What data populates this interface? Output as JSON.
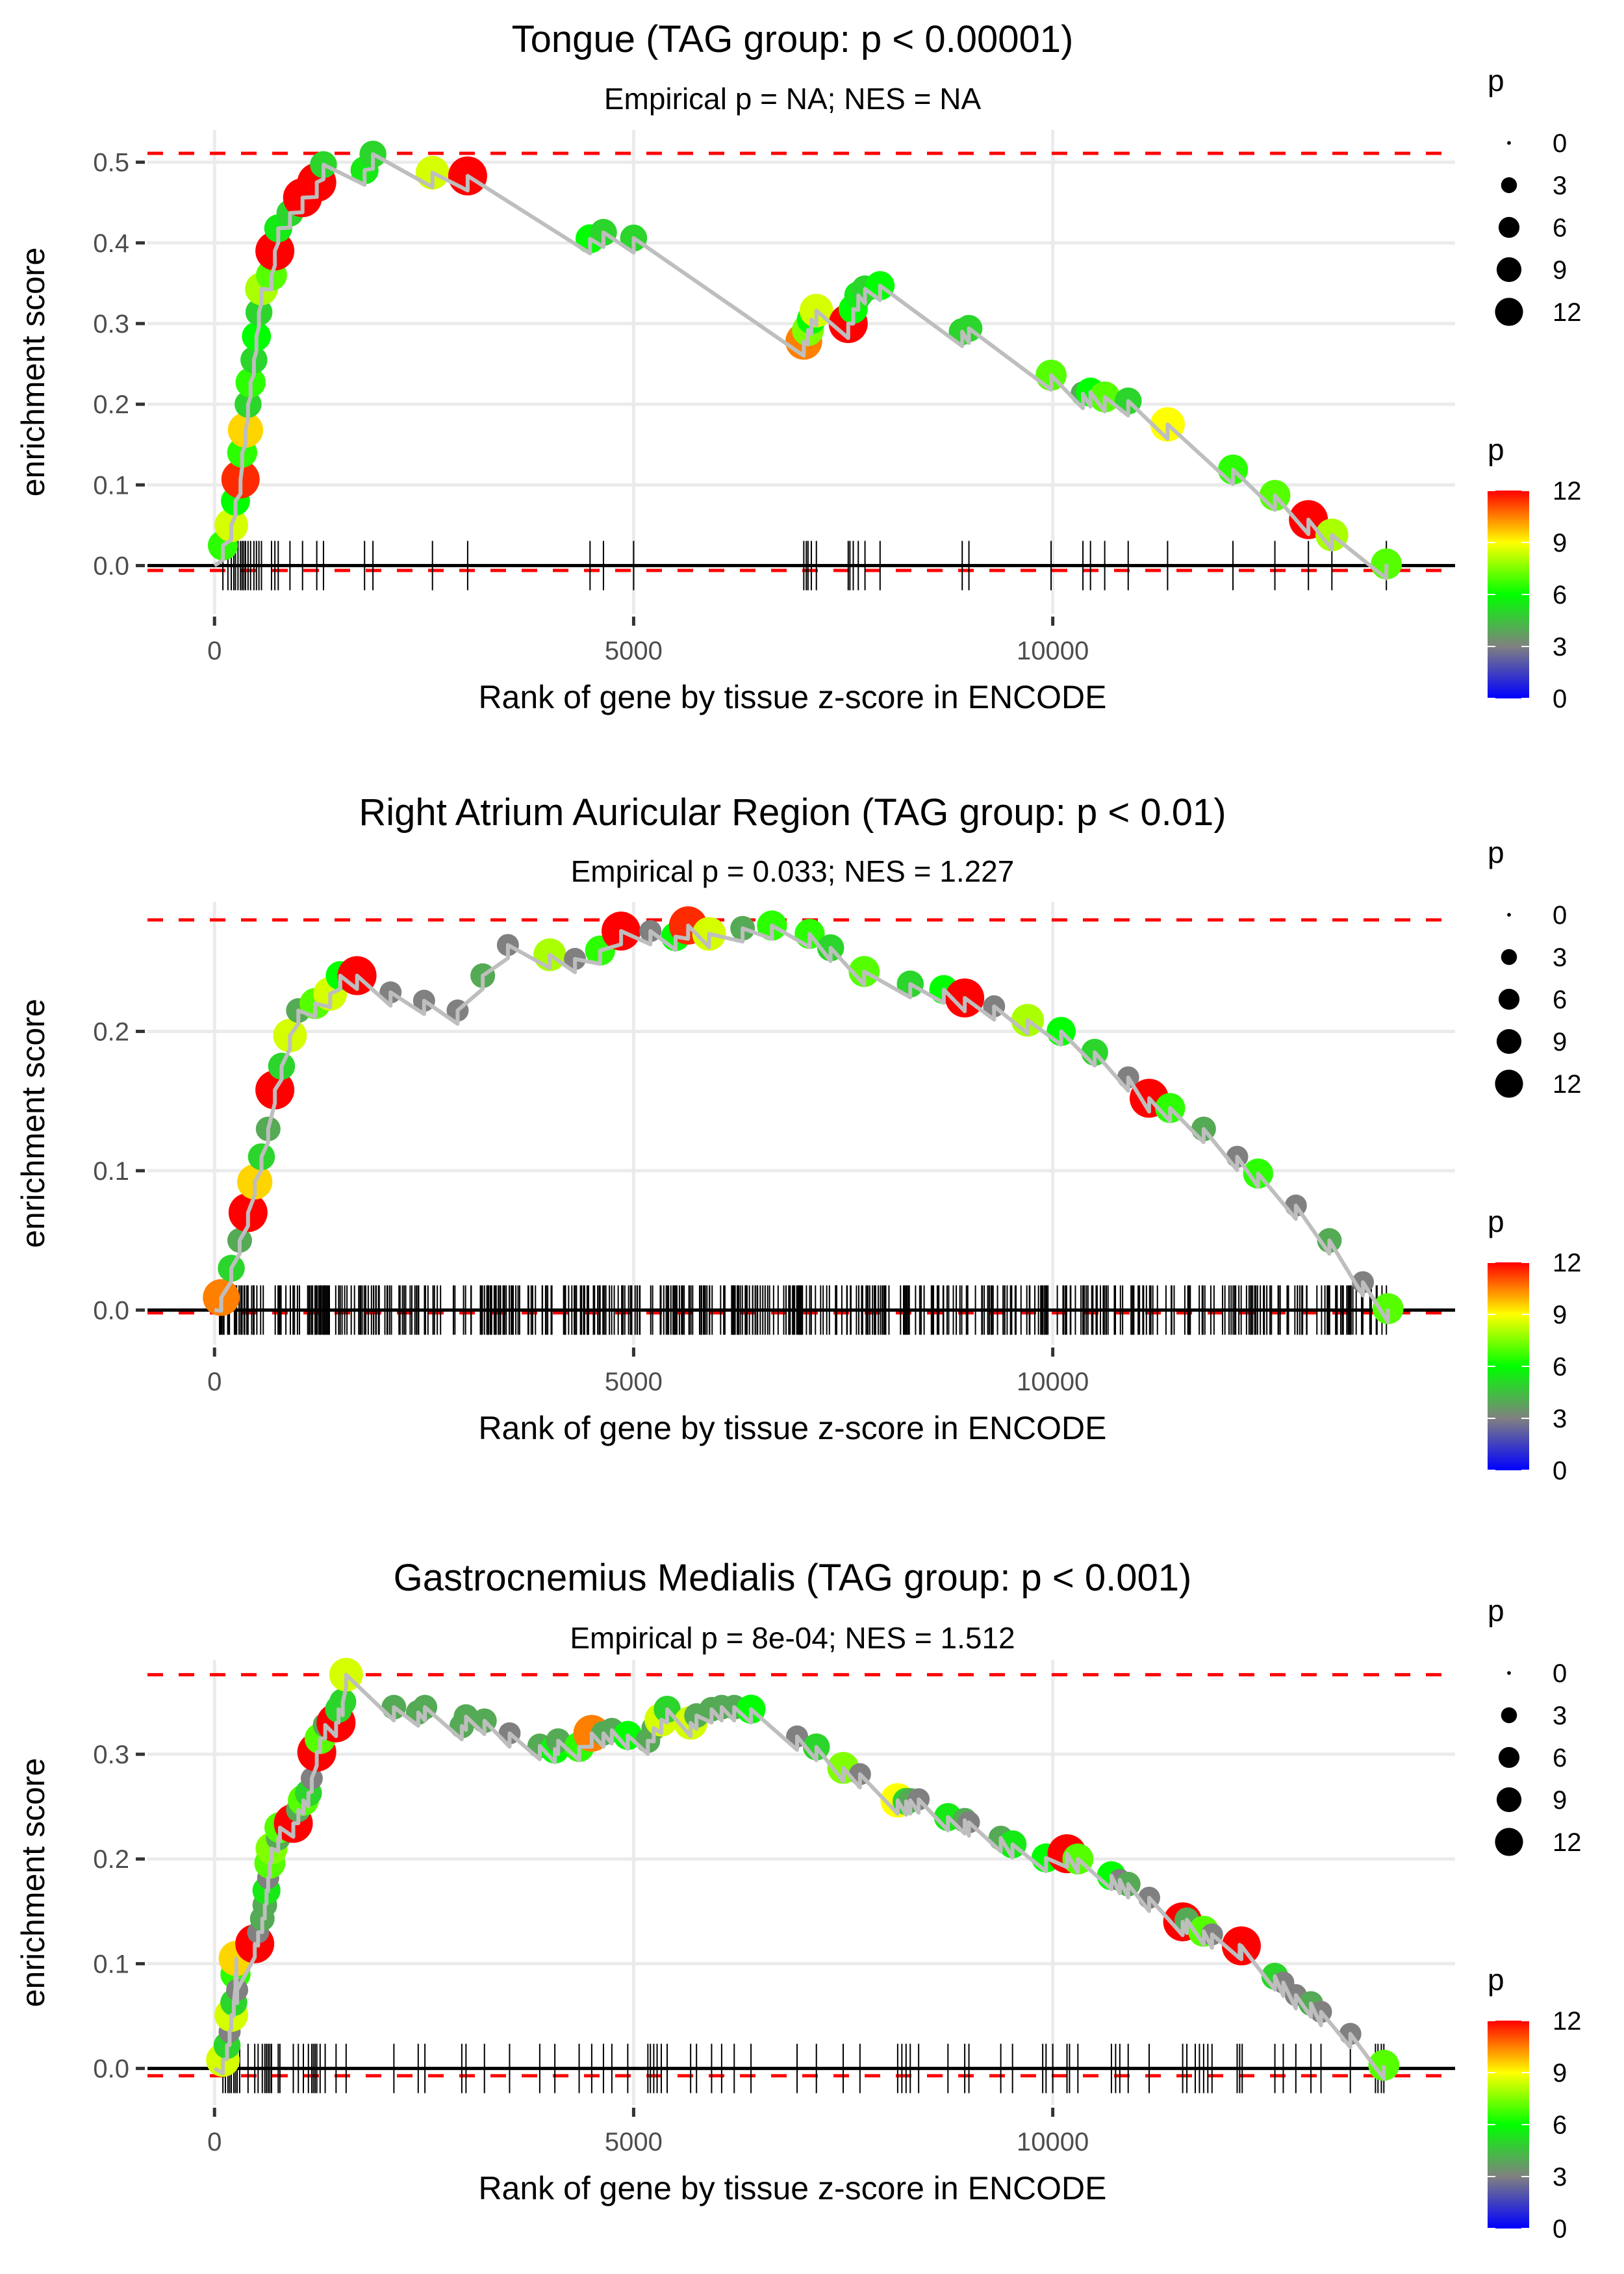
{
  "chart_data": [
    {
      "type": "line",
      "title": "Tongue (TAG group: p < 0.00001)",
      "subtitle": "Empirical p = NA; NES = NA",
      "xlabel": "Rank of gene by tissue z-score in ENCODE",
      "ylabel": "enrichment score",
      "xlim": [
        -800,
        14800
      ],
      "ylim": [
        -0.06,
        0.54
      ],
      "x_ticks": [
        0,
        5000,
        10000
      ],
      "x_tick_labels": [
        "0",
        "5000",
        "10000"
      ],
      "y_ticks": [
        0.0,
        0.1,
        0.2,
        0.3,
        0.4,
        0.5
      ],
      "y_tick_labels": [
        "0.0",
        "0.1",
        "0.2",
        "0.3",
        "0.4",
        "0.5"
      ],
      "max_es_line": 0.511,
      "min_es_line": -0.006,
      "grid": true,
      "points": [
        [
          100,
          0.025,
          6.5
        ],
        [
          200,
          0.05,
          8.5
        ],
        [
          250,
          0.08,
          6
        ],
        [
          310,
          0.107,
          11.5
        ],
        [
          330,
          0.14,
          6.5
        ],
        [
          370,
          0.168,
          9.5
        ],
        [
          400,
          0.2,
          5
        ],
        [
          430,
          0.227,
          6.5
        ],
        [
          470,
          0.255,
          5
        ],
        [
          500,
          0.284,
          6
        ],
        [
          530,
          0.314,
          5
        ],
        [
          560,
          0.343,
          8
        ],
        [
          680,
          0.36,
          7
        ],
        [
          720,
          0.39,
          12
        ],
        [
          760,
          0.418,
          5.5
        ],
        [
          900,
          0.437,
          5
        ],
        [
          1050,
          0.456,
          12
        ],
        [
          1220,
          0.475,
          12
        ],
        [
          1300,
          0.497,
          5
        ],
        [
          1790,
          0.49,
          5.5
        ],
        [
          1890,
          0.51,
          5
        ],
        [
          2600,
          0.487,
          8.5
        ],
        [
          3020,
          0.483,
          12
        ],
        [
          4480,
          0.405,
          6
        ],
        [
          4640,
          0.413,
          5
        ],
        [
          5000,
          0.406,
          5
        ],
        [
          7030,
          0.278,
          10.5
        ],
        [
          7080,
          0.292,
          7.5
        ],
        [
          7120,
          0.305,
          6
        ],
        [
          7180,
          0.316,
          8.5
        ],
        [
          7560,
          0.3,
          12
        ],
        [
          7620,
          0.318,
          6
        ],
        [
          7680,
          0.335,
          5.5
        ],
        [
          7760,
          0.343,
          5
        ],
        [
          7940,
          0.347,
          6
        ],
        [
          8920,
          0.29,
          5
        ],
        [
          9000,
          0.294,
          5
        ],
        [
          9980,
          0.236,
          7
        ],
        [
          10360,
          0.213,
          4
        ],
        [
          10450,
          0.215,
          6
        ],
        [
          10620,
          0.209,
          7
        ],
        [
          10900,
          0.204,
          5
        ],
        [
          11370,
          0.175,
          9
        ],
        [
          12150,
          0.119,
          6.5
        ],
        [
          12650,
          0.087,
          7
        ],
        [
          13050,
          0.057,
          12
        ],
        [
          13330,
          0.038,
          8
        ],
        [
          13980,
          0.002,
          7
        ]
      ],
      "rug": [
        100,
        160,
        200,
        230,
        250,
        280,
        310,
        330,
        350,
        370,
        400,
        430,
        470,
        500,
        530,
        560,
        680,
        720,
        760,
        900,
        1050,
        1220,
        1300,
        1790,
        1890,
        2600,
        3020,
        4480,
        4640,
        5000,
        7030,
        7060,
        7080,
        7120,
        7180,
        7560,
        7580,
        7620,
        7680,
        7760,
        7940,
        8920,
        9000,
        9980,
        10360,
        10450,
        10620,
        10900,
        11370,
        12150,
        12650,
        13050,
        13330,
        13980
      ]
    },
    {
      "type": "line",
      "title": "Right Atrium Auricular Region (TAG group: p < 0.01)",
      "subtitle": "Empirical p = 0.033; NES = 1.227",
      "xlabel": "Rank of gene by tissue z-score in ENCODE",
      "ylabel": "enrichment score",
      "xlim": [
        -800,
        14800
      ],
      "ylim": [
        -0.025,
        0.293
      ],
      "x_ticks": [
        0,
        5000,
        10000
      ],
      "x_tick_labels": [
        "0",
        "5000",
        "10000"
      ],
      "y_ticks": [
        0.0,
        0.1,
        0.2
      ],
      "y_tick_labels": [
        "0.0",
        "0.1",
        "0.2"
      ],
      "max_es_line": 0.28,
      "min_es_line": -0.002,
      "grid": true,
      "points": [
        [
          80,
          0.009,
          10.5
        ],
        [
          200,
          0.03,
          5
        ],
        [
          300,
          0.05,
          4
        ],
        [
          400,
          0.07,
          12
        ],
        [
          480,
          0.092,
          9.5
        ],
        [
          560,
          0.11,
          5
        ],
        [
          640,
          0.13,
          4
        ],
        [
          720,
          0.158,
          12
        ],
        [
          800,
          0.175,
          5
        ],
        [
          900,
          0.197,
          8.5
        ],
        [
          1000,
          0.215,
          4
        ],
        [
          1200,
          0.22,
          7
        ],
        [
          1380,
          0.227,
          8.5
        ],
        [
          1500,
          0.24,
          6
        ],
        [
          1700,
          0.24,
          12
        ],
        [
          2100,
          0.228,
          3
        ],
        [
          2500,
          0.222,
          3
        ],
        [
          2900,
          0.215,
          3
        ],
        [
          3200,
          0.24,
          4
        ],
        [
          3500,
          0.262,
          3
        ],
        [
          4000,
          0.255,
          8
        ],
        [
          4300,
          0.252,
          3
        ],
        [
          4600,
          0.258,
          6.5
        ],
        [
          4850,
          0.272,
          12
        ],
        [
          5200,
          0.272,
          3
        ],
        [
          5500,
          0.268,
          6
        ],
        [
          5650,
          0.276,
          11.5
        ],
        [
          5900,
          0.27,
          8.5
        ],
        [
          6300,
          0.274,
          4
        ],
        [
          6650,
          0.276,
          6.5
        ],
        [
          7100,
          0.27,
          6.5
        ],
        [
          7350,
          0.26,
          5
        ],
        [
          7750,
          0.243,
          7
        ],
        [
          8300,
          0.234,
          5
        ],
        [
          8700,
          0.23,
          6
        ],
        [
          8950,
          0.224,
          12
        ],
        [
          9300,
          0.218,
          3
        ],
        [
          9700,
          0.208,
          8
        ],
        [
          10100,
          0.2,
          6
        ],
        [
          10500,
          0.185,
          5
        ],
        [
          10900,
          0.167,
          3
        ],
        [
          11150,
          0.152,
          12
        ],
        [
          11400,
          0.145,
          6.5
        ],
        [
          11800,
          0.13,
          4
        ],
        [
          12200,
          0.11,
          3
        ],
        [
          12450,
          0.098,
          6.5
        ],
        [
          12900,
          0.075,
          3
        ],
        [
          13300,
          0.05,
          4
        ],
        [
          13700,
          0.02,
          3
        ],
        [
          14000,
          0.001,
          7
        ]
      ],
      "rug_range": [
        60,
        14000
      ],
      "rug_count": 520
    },
    {
      "type": "line",
      "title": "Gastrocnemius Medialis (TAG group: p < 0.001)",
      "subtitle": "Empirical p = 8e-04; NES = 1.512",
      "xlabel": "Rank of gene by tissue z-score in ENCODE",
      "ylabel": "enrichment score",
      "xlim": [
        -800,
        14800
      ],
      "ylim": [
        -0.035,
        0.39
      ],
      "x_ticks": [
        0,
        5000,
        10000
      ],
      "x_tick_labels": [
        "0",
        "5000",
        "10000"
      ],
      "y_ticks": [
        0.0,
        0.1,
        0.2,
        0.3
      ],
      "y_tick_labels": [
        "0.0",
        "0.1",
        "0.2",
        "0.3"
      ],
      "max_es_line": 0.376,
      "min_es_line": -0.007,
      "grid": true,
      "points": [
        [
          100,
          0.008,
          8.5
        ],
        [
          150,
          0.022,
          5
        ],
        [
          180,
          0.035,
          3
        ],
        [
          200,
          0.051,
          8.5
        ],
        [
          230,
          0.063,
          5
        ],
        [
          270,
          0.075,
          3
        ],
        [
          250,
          0.09,
          6.5
        ],
        [
          260,
          0.105,
          9.5
        ],
        [
          480,
          0.119,
          12
        ],
        [
          520,
          0.13,
          3
        ],
        [
          570,
          0.143,
          4
        ],
        [
          600,
          0.156,
          4
        ],
        [
          620,
          0.17,
          5.5
        ],
        [
          640,
          0.182,
          3
        ],
        [
          660,
          0.196,
          7
        ],
        [
          680,
          0.21,
          7.5
        ],
        [
          760,
          0.22,
          4
        ],
        [
          780,
          0.23,
          7
        ],
        [
          940,
          0.234,
          12
        ],
        [
          1000,
          0.247,
          4
        ],
        [
          1060,
          0.256,
          7
        ],
        [
          1120,
          0.263,
          5
        ],
        [
          1160,
          0.277,
          3
        ],
        [
          1220,
          0.302,
          12
        ],
        [
          1260,
          0.315,
          7
        ],
        [
          1320,
          0.328,
          4
        ],
        [
          1450,
          0.33,
          12
        ],
        [
          1480,
          0.343,
          5
        ],
        [
          1530,
          0.35,
          5
        ],
        [
          1570,
          0.376,
          8.5
        ],
        [
          2140,
          0.345,
          4
        ],
        [
          2430,
          0.34,
          4
        ],
        [
          2510,
          0.345,
          4
        ],
        [
          2950,
          0.327,
          4
        ],
        [
          3000,
          0.336,
          4
        ],
        [
          3220,
          0.332,
          4
        ],
        [
          3520,
          0.32,
          3
        ],
        [
          3880,
          0.308,
          4
        ],
        [
          4060,
          0.305,
          6
        ],
        [
          4100,
          0.313,
          4
        ],
        [
          4350,
          0.307,
          6.5
        ],
        [
          4500,
          0.32,
          10.5
        ],
        [
          4640,
          0.32,
          4
        ],
        [
          4740,
          0.323,
          4
        ],
        [
          4930,
          0.318,
          6
        ],
        [
          5170,
          0.313,
          4
        ],
        [
          5240,
          0.325,
          4
        ],
        [
          5330,
          0.333,
          8.5
        ],
        [
          5400,
          0.343,
          5
        ],
        [
          5680,
          0.33,
          8.5
        ],
        [
          5750,
          0.337,
          4
        ],
        [
          5930,
          0.343,
          4
        ],
        [
          6050,
          0.345,
          4
        ],
        [
          6200,
          0.345,
          4
        ],
        [
          6400,
          0.343,
          6
        ],
        [
          6950,
          0.317,
          3
        ],
        [
          7180,
          0.307,
          5
        ],
        [
          7500,
          0.287,
          7.5
        ],
        [
          7700,
          0.281,
          3
        ],
        [
          8150,
          0.256,
          9
        ],
        [
          8250,
          0.255,
          5
        ],
        [
          8300,
          0.256,
          4
        ],
        [
          8400,
          0.257,
          3
        ],
        [
          8750,
          0.24,
          5.5
        ],
        [
          8950,
          0.237,
          4
        ],
        [
          9000,
          0.235,
          3
        ],
        [
          9380,
          0.22,
          4
        ],
        [
          9520,
          0.214,
          5.5
        ],
        [
          9920,
          0.201,
          6
        ],
        [
          10170,
          0.205,
          12
        ],
        [
          10300,
          0.2,
          7
        ],
        [
          10700,
          0.184,
          6
        ],
        [
          10800,
          0.18,
          3
        ],
        [
          10900,
          0.176,
          4
        ],
        [
          11150,
          0.163,
          3
        ],
        [
          11550,
          0.14,
          12
        ],
        [
          11600,
          0.142,
          4
        ],
        [
          11800,
          0.131,
          7
        ],
        [
          11900,
          0.128,
          3
        ],
        [
          12250,
          0.117,
          12
        ],
        [
          12230,
          0.118,
          4
        ],
        [
          12650,
          0.088,
          5
        ],
        [
          12750,
          0.082,
          3
        ],
        [
          12900,
          0.07,
          3
        ],
        [
          13080,
          0.062,
          4
        ],
        [
          13200,
          0.054,
          3
        ],
        [
          13550,
          0.033,
          3
        ],
        [
          13950,
          0.003,
          7
        ]
      ],
      "rug": [
        100,
        130,
        160,
        180,
        200,
        230,
        250,
        270,
        300,
        400,
        480,
        520,
        570,
        600,
        620,
        640,
        660,
        680,
        760,
        780,
        940,
        1000,
        1060,
        1120,
        1160,
        1180,
        1200,
        1220,
        1260,
        1320,
        1450,
        1570,
        2140,
        2430,
        2510,
        2950,
        3000,
        3220,
        3520,
        3880,
        4060,
        4350,
        4500,
        4640,
        4740,
        4930,
        5170,
        5200,
        5240,
        5280,
        5330,
        5400,
        5680,
        5750,
        5930,
        6050,
        6200,
        6400,
        6950,
        7180,
        7500,
        7700,
        8150,
        8200,
        8250,
        8300,
        8400,
        8750,
        8950,
        9000,
        9380,
        9520,
        9880,
        9920,
        10000,
        10170,
        10200,
        10300,
        10700,
        10750,
        10800,
        10900,
        11150,
        11550,
        11600,
        11700,
        11750,
        11800,
        11850,
        11900,
        12200,
        12230,
        12260,
        12650,
        12750,
        12900,
        13080,
        13200,
        13550,
        13850,
        13880,
        13920,
        13950
      ]
    }
  ],
  "size_legend": {
    "title": "p",
    "labels": [
      "0",
      "3",
      "6",
      "9",
      "12"
    ],
    "values": [
      0,
      3,
      6,
      9,
      12
    ]
  },
  "color_legend": {
    "title": "p",
    "labels": [
      "12",
      "9",
      "6",
      "3",
      "0"
    ],
    "values": [
      12,
      9,
      6,
      3,
      0
    ],
    "stops": [
      "#0000ff",
      "#808080",
      "#00ff00",
      "#ffff00",
      "#ff0000"
    ]
  },
  "colors": {
    "line": "#bebebe",
    "dashed": "#ff0000",
    "zero_line": "#000000",
    "grid": "#ebebeb"
  }
}
